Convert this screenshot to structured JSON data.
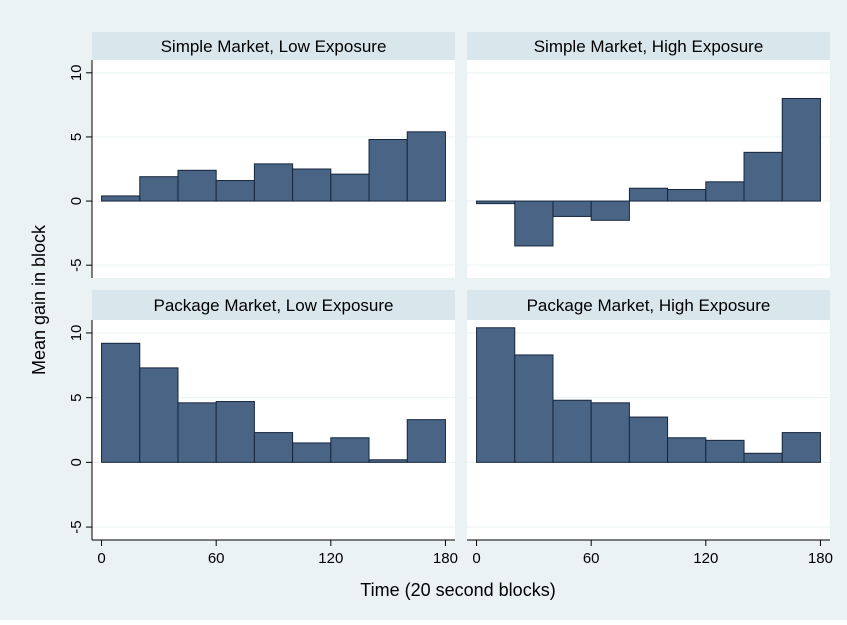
{
  "chart_data": {
    "type": "bar",
    "layout": "2x2 facet grid",
    "xlabel": "Time (20 second blocks)",
    "ylabel": "Mean gain in block",
    "xlim": [
      -5,
      185
    ],
    "ylim": [
      -6,
      11
    ],
    "x_ticks": [
      0,
      60,
      120,
      180
    ],
    "y_ticks": [
      -5,
      0,
      5,
      10
    ],
    "bin_width": 20,
    "bin_starts": [
      0,
      20,
      40,
      60,
      80,
      100,
      120,
      140,
      160
    ],
    "grid": true,
    "legend": "none",
    "colors": {
      "bar_fill": "#4a6486",
      "bar_stroke": "#16263d",
      "outer_background": "#eaf2f3",
      "plot_background": "#ffffff",
      "strip_background": "#d9e6eb",
      "grid": "#eaf2f3",
      "axis": "#000000"
    },
    "panels": [
      {
        "title": "Simple Market, Low Exposure",
        "values": [
          0.4,
          1.9,
          2.4,
          1.6,
          2.9,
          2.5,
          2.1,
          4.8,
          5.4
        ]
      },
      {
        "title": "Simple Market, High Exposure",
        "values": [
          -0.2,
          -3.5,
          -1.2,
          -1.5,
          1.0,
          0.9,
          1.5,
          3.8,
          8.0
        ]
      },
      {
        "title": "Package Market, Low Exposure",
        "values": [
          9.2,
          7.3,
          4.6,
          4.7,
          2.3,
          1.5,
          1.9,
          0.2,
          3.3
        ]
      },
      {
        "title": "Package Market, High Exposure",
        "values": [
          10.4,
          8.3,
          4.8,
          4.6,
          3.5,
          1.9,
          1.7,
          0.7,
          2.3
        ]
      }
    ]
  }
}
